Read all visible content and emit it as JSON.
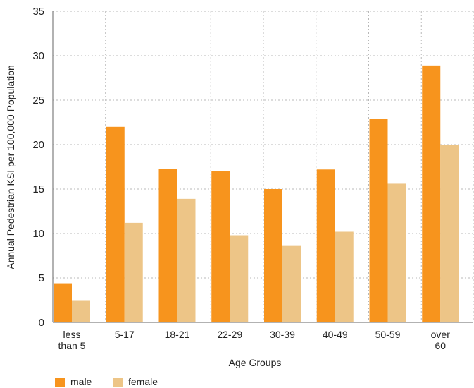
{
  "chart_data": {
    "type": "bar",
    "title": "",
    "xlabel": "Age Groups",
    "ylabel": "Annual Pedestrian KSI per 100,000 Population",
    "ylim": [
      0,
      35
    ],
    "yticks": [
      0,
      5,
      10,
      15,
      20,
      25,
      30,
      35
    ],
    "grid": true,
    "legend_position": "bottom-left",
    "categories": [
      [
        "less",
        "than 5"
      ],
      [
        "5-17"
      ],
      [
        "18-21"
      ],
      [
        "22-29"
      ],
      [
        "30-39"
      ],
      [
        "40-49"
      ],
      [
        "50-59"
      ],
      [
        "over",
        "60"
      ]
    ],
    "series": [
      {
        "name": "male",
        "color": "#f7941d",
        "values": [
          4.4,
          22.0,
          17.3,
          17.0,
          15.0,
          17.2,
          22.9,
          28.9
        ]
      },
      {
        "name": "female",
        "color": "#edc587",
        "values": [
          2.5,
          11.2,
          13.9,
          9.8,
          8.6,
          10.2,
          15.6,
          20.0
        ]
      }
    ]
  }
}
